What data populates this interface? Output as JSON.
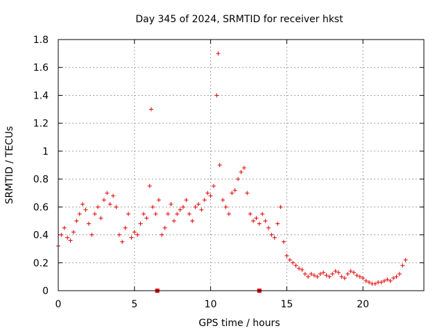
{
  "chart_data": {
    "type": "scatter",
    "title": "Day 345 of 2024, SRMTID for receiver hkst",
    "xlabel": "GPS time / hours",
    "ylabel": "SRMTID / TECUs",
    "xlim": [
      0,
      24
    ],
    "ylim": [
      0,
      1.8
    ],
    "xticks": [
      0,
      5,
      10,
      15,
      20
    ],
    "xtick_labels": [
      "0",
      "5",
      "10",
      "15",
      "20"
    ],
    "yticks": [
      0,
      0.2,
      0.4,
      0.6,
      0.8,
      1.0,
      1.2,
      1.4,
      1.6,
      1.8
    ],
    "ytick_labels": [
      "0",
      "0.2",
      "0.4",
      "0.6",
      "0.8",
      "1",
      "1.2",
      "1.4",
      "1.6",
      "1.8"
    ],
    "grid": true,
    "marker": "+",
    "color": "#e00000",
    "series": [
      {
        "name": "SRMTID",
        "x": [
          0.0,
          0.2,
          0.4,
          0.6,
          0.8,
          1.0,
          1.2,
          1.4,
          1.6,
          1.8,
          2.0,
          2.2,
          2.4,
          2.6,
          2.8,
          3.0,
          3.2,
          3.4,
          3.6,
          3.8,
          4.0,
          4.2,
          4.4,
          4.6,
          4.8,
          5.0,
          5.2,
          5.4,
          5.6,
          5.8,
          6.0,
          6.1,
          6.2,
          6.4,
          6.6,
          6.8,
          7.0,
          7.2,
          7.4,
          7.6,
          7.8,
          8.0,
          8.2,
          8.4,
          8.6,
          8.8,
          9.0,
          9.2,
          9.4,
          9.6,
          9.8,
          10.0,
          10.2,
          10.4,
          10.5,
          10.6,
          10.8,
          11.0,
          11.2,
          11.4,
          11.6,
          11.8,
          12.0,
          12.2,
          12.4,
          12.6,
          12.8,
          13.0,
          13.2,
          13.4,
          13.6,
          13.8,
          14.0,
          14.2,
          14.4,
          14.6,
          14.8,
          15.0,
          15.2,
          15.4,
          15.6,
          15.8,
          16.0,
          16.2,
          16.4,
          16.6,
          16.8,
          17.0,
          17.2,
          17.4,
          17.6,
          17.8,
          18.0,
          18.2,
          18.4,
          18.6,
          18.8,
          19.0,
          19.2,
          19.4,
          19.6,
          19.8,
          20.0,
          20.2,
          20.4,
          20.6,
          20.8,
          21.0,
          21.2,
          21.4,
          21.6,
          21.8,
          22.0,
          22.2,
          22.4,
          22.6,
          22.8
        ],
        "y": [
          0.32,
          0.4,
          0.45,
          0.38,
          0.36,
          0.42,
          0.5,
          0.55,
          0.62,
          0.58,
          0.48,
          0.4,
          0.55,
          0.6,
          0.52,
          0.65,
          0.7,
          0.62,
          0.68,
          0.6,
          0.4,
          0.35,
          0.45,
          0.55,
          0.38,
          0.42,
          0.4,
          0.48,
          0.55,
          0.52,
          0.75,
          1.3,
          0.6,
          0.55,
          0.65,
          0.4,
          0.45,
          0.55,
          0.62,
          0.5,
          0.55,
          0.58,
          0.6,
          0.65,
          0.55,
          0.5,
          0.6,
          0.62,
          0.58,
          0.65,
          0.7,
          0.68,
          0.75,
          1.4,
          1.7,
          0.9,
          0.65,
          0.6,
          0.55,
          0.7,
          0.72,
          0.8,
          0.85,
          0.88,
          0.7,
          0.55,
          0.5,
          0.52,
          0.48,
          0.55,
          0.5,
          0.45,
          0.4,
          0.38,
          0.48,
          0.6,
          0.35,
          0.25,
          0.22,
          0.2,
          0.18,
          0.16,
          0.15,
          0.12,
          0.1,
          0.12,
          0.11,
          0.1,
          0.12,
          0.13,
          0.11,
          0.1,
          0.12,
          0.14,
          0.13,
          0.1,
          0.09,
          0.12,
          0.14,
          0.13,
          0.11,
          0.1,
          0.09,
          0.07,
          0.06,
          0.05,
          0.05,
          0.06,
          0.06,
          0.07,
          0.08,
          0.07,
          0.09,
          0.1,
          0.12,
          0.18,
          0.22
        ]
      }
    ],
    "markers_on_axis": [
      {
        "x": 6.5,
        "y": 0
      },
      {
        "x": 13.2,
        "y": 0
      }
    ]
  }
}
